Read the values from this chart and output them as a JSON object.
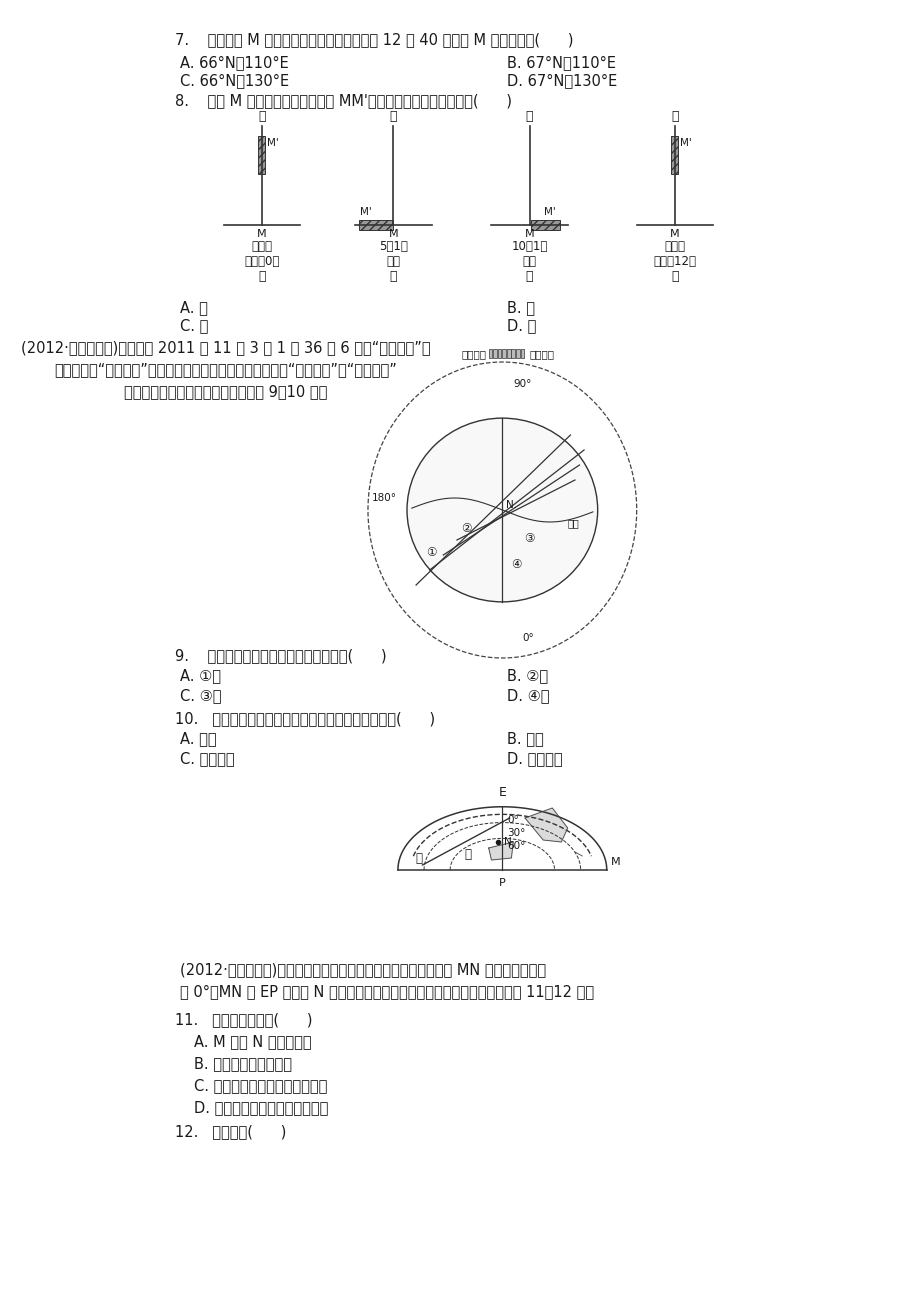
{
  "bg_color": "#ffffff",
  "text_color": "#1a1a1a",
  "q7_text": "7.    若观测到 M 地日影最短的时刻是北京时间 12 时 40 分，则 M 地大致位于(      )",
  "q7_A": "A. 66°N，110°E",
  "q7_B": "B. 67°N，110°E",
  "q7_C": "C. 66°N，130°E",
  "q7_D": "D. 67°N，130°E",
  "q8_text": "8.    若在 M 地垂直立竿，则下图中 MM'所示日照竿影朝向正确的是(      )",
  "diagram_labels": [
    "甲",
    "乙",
    "丙",
    "丁"
  ],
  "diagram_sub1": [
    "夏至日",
    "5月1日",
    "10月1日",
    "秋分日"
  ],
  "diagram_sub2": [
    "地方时0时",
    "日出",
    "正午",
    "地方时12时"
  ],
  "q8_A": "A. 甲",
  "q8_B": "B. 乙",
  "q8_C": "C. 丙",
  "q8_D": "D. 丁",
  "passage1_lines": [
    "(2012·高考江苏卷)北京时间 2011 年 11 月 3 日 1 时 36 分 6 秒，“天宫一号”目",
    "标飞行器与“神舟八号”飞船成功实现首次交会对接。下图是“神舟八号”与“天宫一号”",
    "首次对接空间位置示意图。读图回答 9～10 题。"
  ],
  "q9_text": "9.    首次成功对接时，地球表面的晨线是(      )",
  "q9_A": "A. ①线",
  "q9_B": "B. ②线",
  "q9_C": "C. ③线",
  "q9_D": "D. ④线",
  "q10_text": "10.   最可能干扰航天器与地面指挥系统通信联系的是(      )",
  "q10_A": "A. 云雾",
  "q10_B": "B. 流星",
  "q10_C": "C. 太阳活动",
  "q10_D": "D. 太阳辐射",
  "passage2_lines": [
    "(2012·高考四川卷)右图是以极点为中心的东半球图。此刻，曲线 MN 上各点太阳高度",
    "为 0°，MN 与 EP 相交于 N 点，该季节，北美大陆等温线向南凸出。读图回答 11～12 题。"
  ],
  "q11_text": "11.   由图文信息可知(      )",
  "q11_A": "A. M 位于 N 的西北方向",
  "q11_B": "B. 悉尼正値少雨的季节",
  "q11_C": "C. 此季节是南极考察的最佳时期",
  "q11_D": "D. 这一天甲地日出时刻早于乙地",
  "q12_text": "12.   图示时刻(      )"
}
